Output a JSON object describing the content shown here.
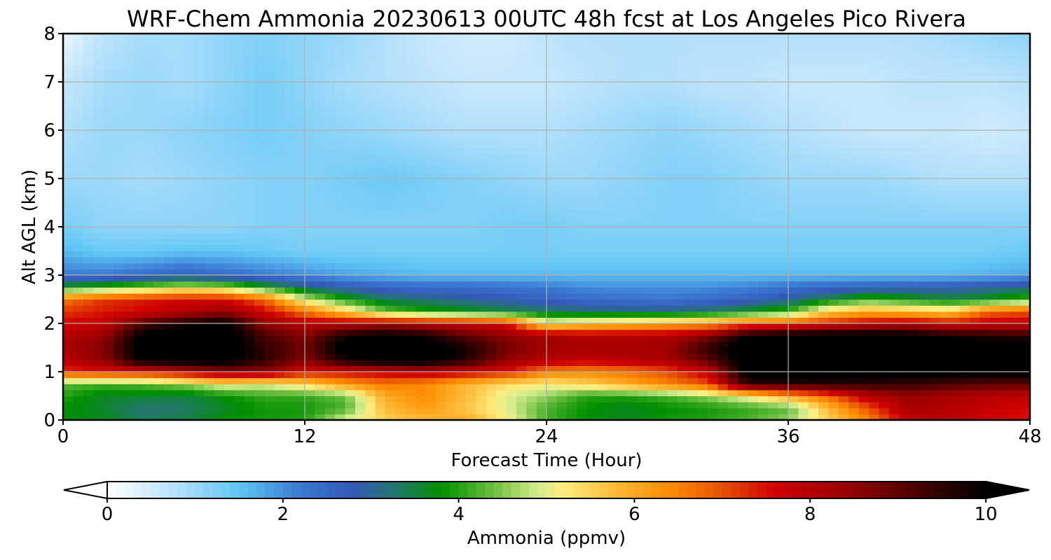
{
  "chart_data": {
    "type": "heatmap",
    "title": "WRF-Chem Ammonia  20230613 00UTC 48h fcst at Los Angeles Pico Rivera",
    "xlabel": "Forecast Time (Hour)",
    "ylabel": "Alt AGL (km)",
    "xlim": [
      0,
      48
    ],
    "ylim": [
      0,
      8
    ],
    "x_ticks": [
      0,
      12,
      24,
      36,
      48
    ],
    "y_ticks": [
      0,
      1,
      2,
      3,
      4,
      5,
      6,
      7,
      8
    ],
    "x_tick_labels": [
      "0",
      "12",
      "24",
      "36",
      "48"
    ],
    "y_tick_labels": [
      "0",
      "1",
      "2",
      "3",
      "4",
      "5",
      "6",
      "7",
      "8"
    ],
    "grid": true,
    "x": [
      0,
      2,
      4,
      6,
      8,
      10,
      12,
      14,
      16,
      18,
      20,
      22,
      24,
      26,
      28,
      30,
      32,
      34,
      36,
      38,
      40,
      42,
      44,
      46,
      48
    ],
    "y": [
      0,
      0.25,
      0.5,
      0.75,
      1,
      1.25,
      1.5,
      1.75,
      2,
      2.25,
      2.5,
      2.75,
      3,
      3.5,
      4,
      5,
      6,
      7,
      8
    ],
    "z_rows": [
      [
        3.8,
        3.7,
        3.4,
        3.5,
        3.8,
        3.9,
        4.0,
        5.0,
        5.5,
        5.8,
        6.0,
        5.2,
        4.2,
        3.8,
        3.7,
        3.9,
        4.0,
        4.2,
        4.6,
        5.5,
        6.5,
        7.8,
        8.0,
        7.6,
        7.5
      ],
      [
        3.8,
        3.6,
        3.2,
        3.3,
        3.6,
        3.9,
        3.9,
        4.2,
        5.8,
        6.2,
        5.6,
        5.0,
        4.2,
        3.8,
        3.6,
        3.8,
        3.9,
        4.1,
        4.3,
        5.8,
        7.0,
        8.2,
        8.0,
        7.7,
        7.5
      ],
      [
        4.0,
        3.6,
        3.6,
        3.5,
        3.8,
        4.1,
        4.1,
        4.4,
        6.0,
        6.4,
        5.8,
        5.0,
        4.6,
        4.0,
        4.0,
        4.2,
        4.6,
        5.2,
        6.0,
        6.8,
        8.0,
        8.4,
        8.2,
        8.0,
        7.8
      ],
      [
        4.3,
        4.2,
        4.3,
        4.6,
        5.2,
        5.0,
        5.5,
        6.2,
        6.6,
        6.4,
        5.8,
        5.4,
        5.2,
        5.5,
        6.0,
        6.5,
        7.0,
        9.5,
        9.6,
        9.6,
        9.5,
        9.4,
        9.2,
        9.0,
        9.0
      ],
      [
        7.2,
        7.4,
        7.5,
        8.0,
        8.5,
        8.5,
        7.5,
        7.6,
        7.8,
        8.0,
        7.8,
        7.4,
        6.5,
        6.4,
        6.6,
        7.0,
        7.8,
        10.2,
        10.3,
        10.3,
        10.3,
        10.3,
        10.2,
        10.2,
        10.2
      ],
      [
        8.0,
        8.5,
        10.2,
        10.3,
        10.3,
        9.5,
        8.6,
        9.8,
        10.3,
        10.3,
        9.6,
        8.5,
        8.0,
        7.8,
        8.0,
        8.2,
        9.0,
        10.4,
        10.5,
        10.5,
        10.5,
        10.5,
        10.5,
        10.5,
        10.5
      ],
      [
        8.2,
        8.6,
        10.3,
        10.4,
        10.4,
        9.5,
        8.8,
        10.3,
        10.4,
        10.4,
        9.8,
        8.8,
        8.3,
        8.2,
        8.2,
        8.3,
        9.5,
        10.4,
        10.5,
        10.5,
        10.5,
        10.5,
        10.5,
        10.5,
        10.5
      ],
      [
        8.0,
        8.4,
        10.2,
        10.3,
        10.4,
        9.2,
        8.6,
        9.8,
        10.2,
        9.8,
        9.0,
        8.5,
        8.2,
        8.0,
        8.0,
        8.0,
        8.6,
        10.0,
        10.3,
        10.4,
        10.4,
        10.2,
        9.8,
        9.6,
        9.5
      ],
      [
        7.6,
        7.8,
        9.2,
        9.8,
        10.2,
        8.5,
        8.0,
        8.0,
        8.2,
        8.0,
        7.8,
        7.5,
        5.2,
        5.6,
        5.8,
        6.0,
        6.2,
        6.8,
        7.0,
        7.4,
        7.8,
        8.0,
        7.6,
        7.8,
        7.8
      ],
      [
        7.2,
        7.4,
        7.6,
        8.0,
        8.4,
        7.6,
        6.6,
        5.6,
        4.4,
        4.0,
        3.8,
        3.6,
        3.4,
        3.2,
        3.2,
        3.2,
        3.4,
        3.8,
        4.2,
        5.6,
        6.0,
        5.8,
        5.6,
        6.8,
        7.0
      ],
      [
        6.6,
        7.2,
        7.4,
        7.6,
        7.6,
        6.8,
        5.0,
        4.0,
        3.4,
        3.2,
        3.0,
        2.8,
        2.6,
        2.4,
        2.3,
        2.2,
        2.4,
        2.6,
        3.0,
        3.6,
        4.2,
        3.9,
        3.6,
        3.8,
        4.2
      ],
      [
        3.9,
        4.2,
        4.6,
        5.0,
        4.8,
        4.0,
        3.2,
        2.8,
        2.5,
        2.4,
        2.4,
        2.3,
        2.2,
        2.0,
        2.0,
        2.0,
        2.0,
        2.1,
        2.3,
        2.5,
        2.6,
        2.7,
        2.8,
        3.0,
        3.2
      ],
      [
        2.2,
        2.2,
        2.4,
        2.6,
        2.4,
        2.2,
        2.0,
        1.8,
        1.7,
        1.6,
        1.6,
        1.6,
        1.6,
        1.6,
        1.6,
        1.6,
        1.6,
        1.6,
        1.6,
        1.6,
        1.6,
        1.6,
        1.6,
        1.7,
        1.8
      ],
      [
        1.6,
        1.4,
        1.4,
        1.5,
        1.5,
        1.4,
        1.3,
        1.3,
        1.3,
        1.3,
        1.3,
        1.3,
        1.3,
        1.3,
        1.3,
        1.3,
        1.3,
        1.3,
        1.3,
        1.3,
        1.3,
        1.3,
        1.3,
        1.3,
        1.4
      ],
      [
        1.3,
        1.1,
        1.1,
        1.1,
        1.1,
        1.2,
        1.2,
        1.2,
        1.2,
        1.2,
        1.2,
        1.3,
        1.3,
        1.2,
        1.2,
        1.2,
        1.2,
        1.2,
        1.2,
        1.2,
        1.2,
        1.2,
        1.2,
        1.2,
        1.2
      ],
      [
        1.0,
        1.0,
        0.9,
        1.0,
        1.1,
        1.2,
        1.2,
        1.3,
        1.4,
        1.3,
        1.2,
        1.1,
        1.0,
        1.0,
        1.1,
        1.2,
        1.2,
        1.1,
        1.0,
        1.0,
        1.0,
        0.9,
        0.8,
        0.8,
        0.8
      ],
      [
        0.8,
        1.0,
        1.0,
        1.1,
        1.2,
        1.3,
        1.2,
        1.1,
        1.0,
        0.9,
        0.8,
        0.8,
        0.8,
        0.9,
        1.0,
        1.1,
        1.0,
        0.9,
        0.8,
        0.7,
        0.6,
        0.6,
        0.6,
        0.5,
        0.6
      ],
      [
        0.6,
        0.9,
        1.0,
        0.9,
        1.1,
        1.3,
        1.1,
        0.9,
        0.8,
        0.7,
        0.6,
        0.6,
        0.6,
        0.7,
        0.8,
        0.8,
        0.7,
        0.7,
        0.6,
        0.6,
        0.6,
        0.7,
        0.7,
        0.7,
        0.8
      ],
      [
        0.2,
        0.7,
        0.9,
        0.9,
        1.1,
        1.2,
        1.1,
        1.0,
        0.8,
        0.6,
        0.5,
        0.5,
        0.7,
        0.8,
        0.8,
        0.8,
        0.8,
        0.8,
        0.8,
        0.8,
        0.8,
        0.8,
        0.9,
        1.0,
        1.1
      ]
    ],
    "colorbar": {
      "label": "Ammonia  (ppmv)",
      "min": 0,
      "max": 10,
      "ticks": [
        0,
        2,
        4,
        6,
        8,
        10
      ],
      "tick_labels": [
        "0",
        "2",
        "4",
        "6",
        "8",
        "10"
      ],
      "extend": "both",
      "color_stops": [
        {
          "v": 0.0,
          "c": "#ffffff"
        },
        {
          "v": 0.8,
          "c": "#b3e0fb"
        },
        {
          "v": 1.5,
          "c": "#5fc6f5"
        },
        {
          "v": 2.2,
          "c": "#3a78d2"
        },
        {
          "v": 2.8,
          "c": "#3558b8"
        },
        {
          "v": 3.3,
          "c": "#22786a"
        },
        {
          "v": 3.8,
          "c": "#008f00"
        },
        {
          "v": 4.4,
          "c": "#6dbf40"
        },
        {
          "v": 4.9,
          "c": "#d4ec8e"
        },
        {
          "v": 5.2,
          "c": "#ffee80"
        },
        {
          "v": 5.7,
          "c": "#ffc040"
        },
        {
          "v": 6.4,
          "c": "#ff8c00"
        },
        {
          "v": 7.0,
          "c": "#e85000"
        },
        {
          "v": 7.6,
          "c": "#d00000"
        },
        {
          "v": 8.4,
          "c": "#9a0000"
        },
        {
          "v": 9.2,
          "c": "#4a0000"
        },
        {
          "v": 10.0,
          "c": "#000000"
        }
      ],
      "under_color": "#ffffff",
      "over_color": "#000000"
    }
  }
}
